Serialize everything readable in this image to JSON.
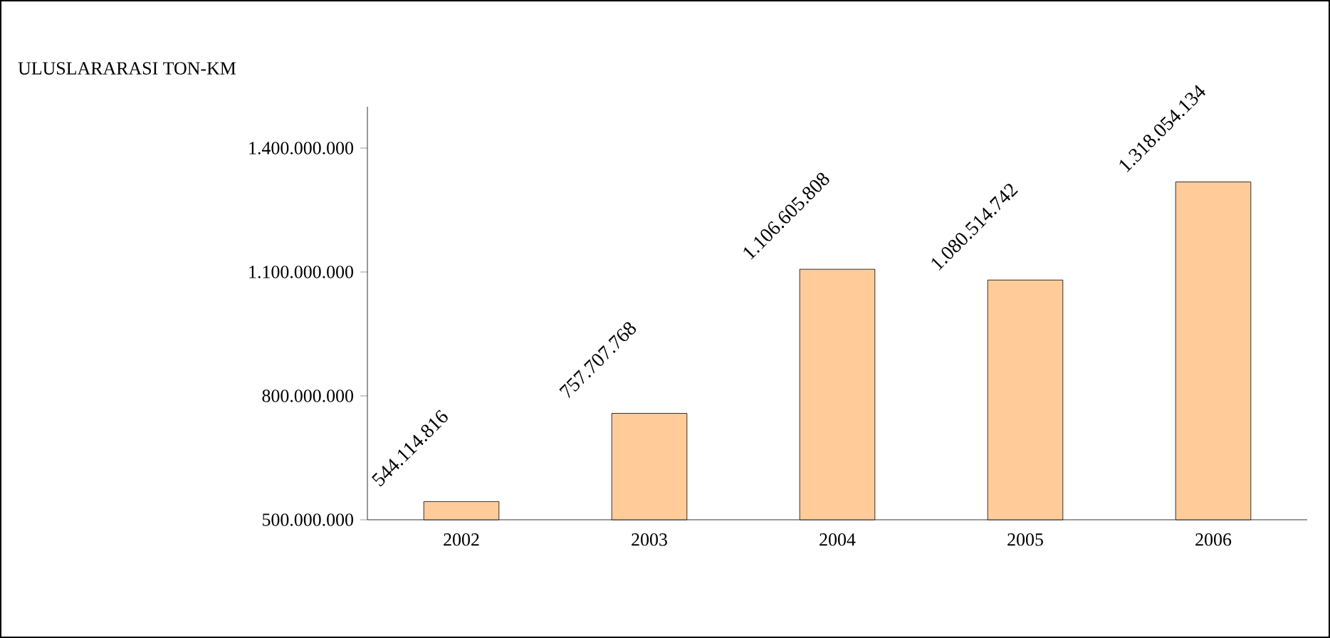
{
  "chart_data": {
    "type": "bar",
    "title": "ULUSLARARASI TON-KM",
    "categories": [
      "2002",
      "2003",
      "2004",
      "2005",
      "2006"
    ],
    "values": [
      544114816,
      757707768,
      1106605808,
      1080514742,
      1318054134
    ],
    "value_labels": [
      "544.114.816",
      "757.707.768",
      "1.106.605.808",
      "1.080.514.742",
      "1.318.054.134"
    ],
    "color": "#ffcc99",
    "ylim": [
      500000000,
      1500000000
    ],
    "yticks": [
      {
        "value": 500000000,
        "label": "500.000.000"
      },
      {
        "value": 800000000,
        "label": "800.000.000"
      },
      {
        "value": 1100000000,
        "label": "1.100.000.000"
      },
      {
        "value": 1400000000,
        "label": "1.400.000.000"
      }
    ]
  }
}
